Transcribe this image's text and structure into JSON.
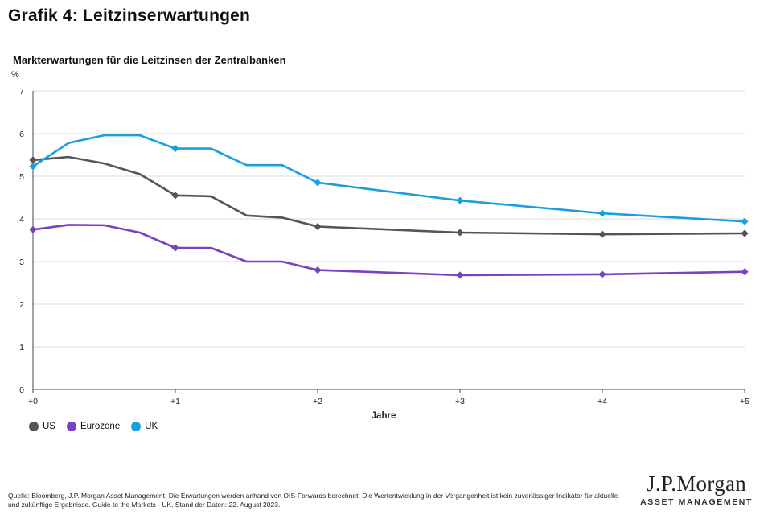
{
  "page": {
    "title": "Grafik 4: Leitzinserwartungen",
    "source": "Quelle: Bloomberg, J.P. Morgan Asset Management. Die Erwartungen werden anhand von OIS-Forwards berechnet. Die Wertentwicklung in der Vergangenheit ist kein zuverlässiger Indikator für aktuelle und zukünftige Ergebnisse. Guide to the Markets - UK. Stand der Daten: 22. August 2023.",
    "logo_main": "J.P.Morgan",
    "logo_sub": "ASSET MANAGEMENT"
  },
  "chart_data": {
    "type": "line",
    "title": "Markterwartungen für die Leitzinsen der Zentralbanken",
    "ylabel": "%",
    "xlabel": "Jahre",
    "ylim": [
      0,
      7
    ],
    "xlim": [
      0,
      5
    ],
    "yticks": [
      0,
      1,
      2,
      3,
      4,
      5,
      6,
      7
    ],
    "xticks": [
      {
        "value": 0,
        "label": "+0"
      },
      {
        "value": 1,
        "label": "+1"
      },
      {
        "value": 2,
        "label": "+2"
      },
      {
        "value": 3,
        "label": "+3"
      },
      {
        "value": 4,
        "label": "+4"
      },
      {
        "value": 5,
        "label": "+5"
      }
    ],
    "grid": true,
    "legend_position": "bottom-left",
    "series": [
      {
        "name": "US",
        "color": "#555555",
        "points": [
          [
            0,
            5.38
          ],
          [
            0.25,
            5.45
          ],
          [
            0.5,
            5.3
          ],
          [
            0.75,
            5.05
          ],
          [
            1,
            4.55
          ],
          [
            1.25,
            4.53
          ],
          [
            1.5,
            4.08
          ],
          [
            1.75,
            4.03
          ],
          [
            2,
            3.82
          ],
          [
            3,
            3.68
          ],
          [
            4,
            3.64
          ],
          [
            5,
            3.66
          ]
        ],
        "markers": [
          0,
          1,
          2,
          3,
          4,
          5
        ]
      },
      {
        "name": "Eurozone",
        "color": "#7b3fc4",
        "points": [
          [
            0,
            3.75
          ],
          [
            0.25,
            3.86
          ],
          [
            0.5,
            3.85
          ],
          [
            0.75,
            3.68
          ],
          [
            1,
            3.32
          ],
          [
            1.25,
            3.32
          ],
          [
            1.5,
            3.0
          ],
          [
            1.75,
            3.0
          ],
          [
            2,
            2.8
          ],
          [
            3,
            2.68
          ],
          [
            4,
            2.7
          ],
          [
            5,
            2.76
          ]
        ],
        "markers": [
          0,
          1,
          2,
          3,
          4,
          5
        ]
      },
      {
        "name": "UK",
        "color": "#1b9ee0",
        "points": [
          [
            0,
            5.23
          ],
          [
            0.25,
            5.78
          ],
          [
            0.5,
            5.96
          ],
          [
            0.75,
            5.96
          ],
          [
            1,
            5.65
          ],
          [
            1.25,
            5.65
          ],
          [
            1.5,
            5.26
          ],
          [
            1.75,
            5.26
          ],
          [
            2,
            4.85
          ],
          [
            3,
            4.43
          ],
          [
            4,
            4.13
          ],
          [
            5,
            3.94
          ]
        ],
        "markers": [
          0,
          1,
          2,
          3,
          4,
          5
        ]
      }
    ]
  }
}
